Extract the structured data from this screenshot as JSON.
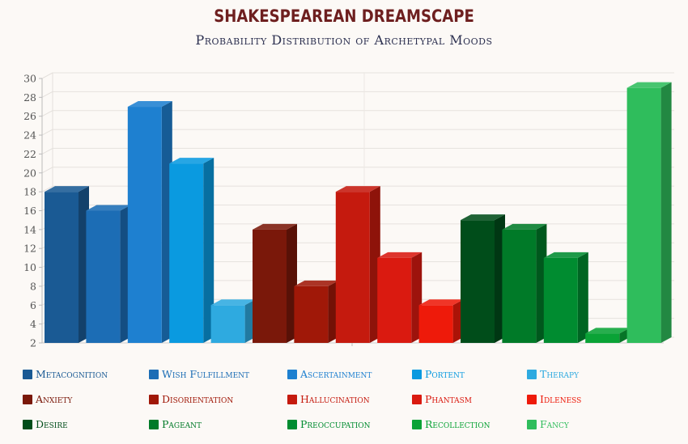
{
  "chart_data": {
    "type": "bar",
    "title": "SHAKESPEAREAN DREAMSCAPE",
    "subtitle": "Probability Distribution of Archetypal Moods",
    "ylim": [
      2,
      30
    ],
    "yticks": [
      2,
      4,
      6,
      8,
      10,
      12,
      14,
      16,
      18,
      20,
      22,
      24,
      26,
      28,
      30
    ],
    "grid": true,
    "legend_placement": "bottom",
    "bars": [
      {
        "name": "Metacognition",
        "value": 18,
        "color": "#1a5a94"
      },
      {
        "name": "Wish Fulfillment",
        "value": 16,
        "color": "#1c6db5"
      },
      {
        "name": "Ascertainment",
        "value": 27,
        "color": "#1e80d0"
      },
      {
        "name": "Portent",
        "value": 21,
        "color": "#0a9ae0"
      },
      {
        "name": "Therapy",
        "value": 6,
        "color": "#2eaae0"
      },
      {
        "name": "Anxiety",
        "value": 14,
        "color": "#7a180a"
      },
      {
        "name": "Disorientation",
        "value": 8,
        "color": "#a01808"
      },
      {
        "name": "Hallucination",
        "value": 18,
        "color": "#c51a0e"
      },
      {
        "name": "Phantasm",
        "value": 11,
        "color": "#da1a10"
      },
      {
        "name": "Idleness",
        "value": 6,
        "color": "#ee1a0a"
      },
      {
        "name": "Desire",
        "value": 15,
        "color": "#004d1a"
      },
      {
        "name": "Pageant",
        "value": 14,
        "color": "#007a28"
      },
      {
        "name": "Preoccupation",
        "value": 11,
        "color": "#008c30"
      },
      {
        "name": "Recollection",
        "value": 3,
        "color": "#0aa336"
      },
      {
        "name": "Fancy",
        "value": 29,
        "color": "#2fbd5c"
      }
    ]
  },
  "legend": [
    {
      "label": "Metacognition",
      "color": "#1a5a94"
    },
    {
      "label": "Wish Fulfillment",
      "color": "#1c6db5"
    },
    {
      "label": "Ascertainment",
      "color": "#1e80d0"
    },
    {
      "label": "Portent",
      "color": "#0a9ae0"
    },
    {
      "label": "Therapy",
      "color": "#2eaae0"
    },
    {
      "label": "Anxiety",
      "color": "#7a180a"
    },
    {
      "label": "Disorientation",
      "color": "#a01808"
    },
    {
      "label": "Hallucination",
      "color": "#c51a0e"
    },
    {
      "label": "Phantasm",
      "color": "#da1a10"
    },
    {
      "label": "Idleness",
      "color": "#ee1a0a"
    },
    {
      "label": "Desire",
      "color": "#004d1a"
    },
    {
      "label": "Pageant",
      "color": "#007a28"
    },
    {
      "label": "Preoccupation",
      "color": "#008c30"
    },
    {
      "label": "Recollection",
      "color": "#0aa336"
    },
    {
      "label": "Fancy",
      "color": "#2fbd5c"
    }
  ]
}
